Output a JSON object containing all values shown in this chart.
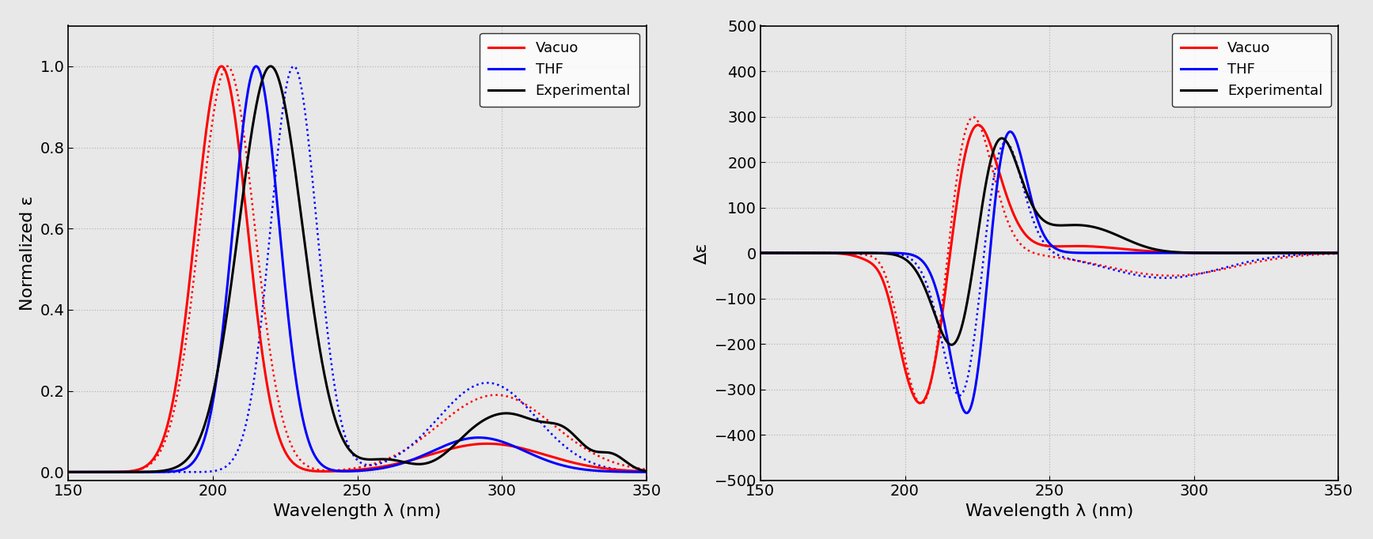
{
  "xlim": [
    150,
    350
  ],
  "x_ticks": [
    150,
    200,
    250,
    300,
    350
  ],
  "xlabel": "Wavelength λ (nm)",
  "plot1_ylabel": "Normalized ε",
  "plot1_ylim": [
    -0.02,
    1.1
  ],
  "plot1_yticks": [
    0,
    0.2,
    0.4,
    0.6,
    0.8,
    1.0
  ],
  "plot2_ylabel": "Δε",
  "plot2_ylim": [
    -500,
    500
  ],
  "plot2_yticks": [
    -500,
    -400,
    -300,
    -200,
    -100,
    0,
    100,
    200,
    300,
    400,
    500
  ],
  "color_vacuo": "#ff0000",
  "color_thf": "#0000ff",
  "color_exp": "#000000",
  "legend_labels": [
    "Vacuo",
    "THF",
    "Experimental"
  ],
  "background_color": "#e8e8e8",
  "grid_color": "#aaaaaa",
  "linewidth_solid": 2.2,
  "linewidth_dotted": 1.8,
  "tick_labelsize": 14,
  "axis_labelsize": 16
}
